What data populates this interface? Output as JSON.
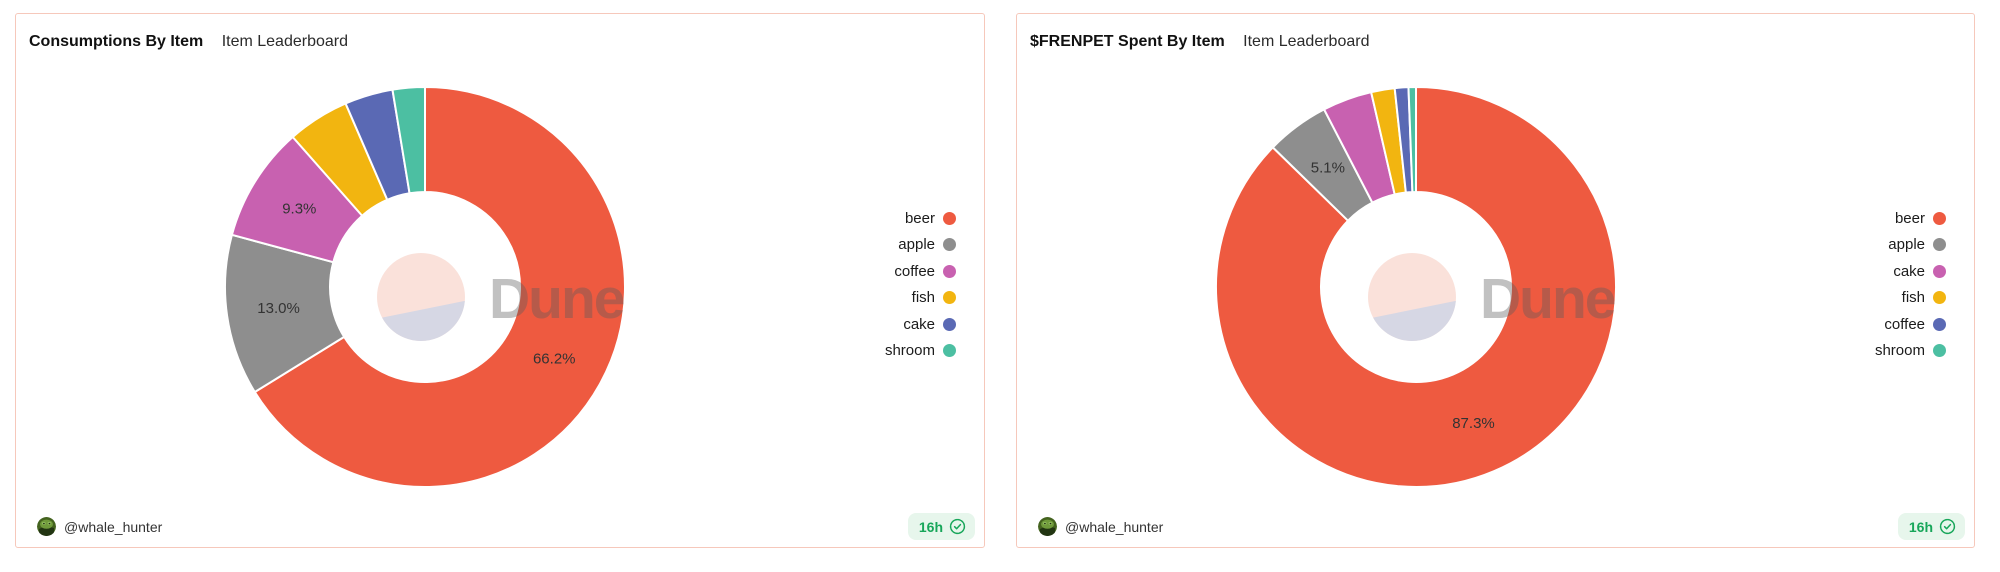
{
  "watermark": {
    "brand": "Dune",
    "circle_top_color": "#fae1da",
    "circle_bottom_color": "#d6d7e4"
  },
  "cards": [
    {
      "title": "Consumptions By Item",
      "subtitle": "Item Leaderboard",
      "author": "@whale_hunter",
      "badge": {
        "label": "16h"
      }
    },
    {
      "title": "$FRENPET Spent By Item",
      "subtitle": "Item Leaderboard",
      "author": "@whale_hunter",
      "badge": {
        "label": "16h"
      }
    }
  ],
  "chart_data": [
    {
      "type": "pie",
      "donut": true,
      "title": "Consumptions By Item",
      "subtitle": "Item Leaderboard",
      "legend_position": "right",
      "inner_radius_ratio": 0.475,
      "start_angle_deg": 0,
      "direction": "clockwise",
      "series": [
        {
          "name": "beer",
          "value_pct": 66.2,
          "label": "66.2%",
          "color": "#ee5a40"
        },
        {
          "name": "apple",
          "value_pct": 13.0,
          "label": "13.0%",
          "color": "#8e8e8e"
        },
        {
          "name": "coffee",
          "value_pct": 9.3,
          "label": "9.3%",
          "color": "#c861b0"
        },
        {
          "name": "fish",
          "value_pct": 5.0,
          "label": null,
          "color": "#f2b510"
        },
        {
          "name": "cake",
          "value_pct": 3.9,
          "label": null,
          "color": "#5a69b4"
        },
        {
          "name": "shroom",
          "value_pct": 2.6,
          "label": null,
          "color": "#4cbfa2"
        }
      ]
    },
    {
      "type": "pie",
      "donut": true,
      "title": "$FRENPET Spent By Item",
      "subtitle": "Item Leaderboard",
      "legend_position": "right",
      "inner_radius_ratio": 0.475,
      "start_angle_deg": 0,
      "direction": "clockwise",
      "series": [
        {
          "name": "beer",
          "value_pct": 87.3,
          "label": "87.3%",
          "color": "#ee5a40"
        },
        {
          "name": "apple",
          "value_pct": 5.1,
          "label": "5.1%",
          "color": "#8e8e8e"
        },
        {
          "name": "cake",
          "value_pct": 4.0,
          "label": null,
          "color": "#c861b0"
        },
        {
          "name": "fish",
          "value_pct": 1.9,
          "label": null,
          "color": "#f2b510"
        },
        {
          "name": "coffee",
          "value_pct": 1.1,
          "label": null,
          "color": "#5a69b4"
        },
        {
          "name": "shroom",
          "value_pct": 0.6,
          "label": null,
          "color": "#4cbfa2"
        }
      ]
    }
  ]
}
